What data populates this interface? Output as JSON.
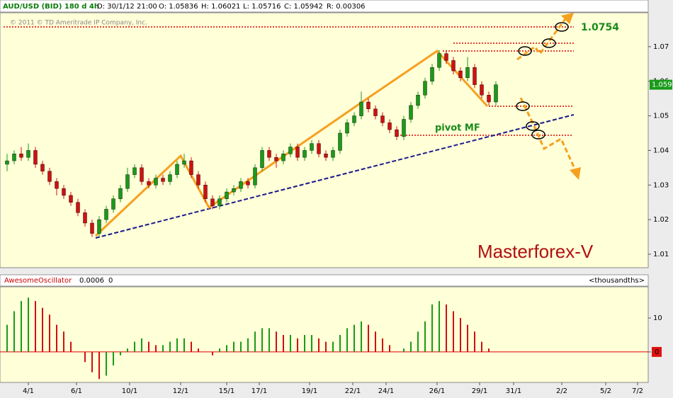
{
  "header": {
    "symbol": "AUD/USD (BID) 180 d 4h",
    "date": "D: 30/1/12 21:00",
    "open": "O: 1.05836",
    "high": "H: 1.06021",
    "low": "L: 1.05716",
    "close": "C: 1.05942",
    "range": "R: 0.00306",
    "copyright": "© 2011 © TD Ameritrade IP Company, Inc."
  },
  "chart_data": [
    {
      "type": "candlestick",
      "annotations": [
        "1.0754",
        "pivot MF",
        "Masterforex-V"
      ],
      "last_price": 1.059,
      "open": [
        1.036,
        1.037,
        1.039,
        1.038,
        1.04,
        1.036,
        1.034,
        1.031,
        1.029,
        1.027,
        1.025,
        1.022,
        1.019,
        1.016,
        1.02,
        1.023,
        1.026,
        1.029,
        1.033,
        1.035,
        1.031,
        1.03,
        1.032,
        1.031,
        1.033,
        1.036,
        1.037,
        1.033,
        1.03,
        1.026,
        1.024,
        1.026,
        1.028,
        1.029,
        1.031,
        1.03,
        1.035,
        1.04,
        1.038,
        1.037,
        1.039,
        1.041,
        1.038,
        1.04,
        1.042,
        1.039,
        1.038,
        1.04,
        1.045,
        1.048,
        1.05,
        1.054,
        1.052,
        1.05,
        1.048,
        1.046,
        1.044,
        1.049,
        1.053,
        1.056,
        1.06,
        1.064,
        1.068,
        1.066,
        1.063,
        1.061,
        1.064,
        1.059,
        1.056,
        1.054
      ],
      "high": [
        1.039,
        1.04,
        1.041,
        1.042,
        1.041,
        1.037,
        1.035,
        1.032,
        1.03,
        1.028,
        1.026,
        1.023,
        1.02,
        1.021,
        1.024,
        1.027,
        1.03,
        1.035,
        1.036,
        1.036,
        1.032,
        1.033,
        1.033,
        1.034,
        1.037,
        1.039,
        1.038,
        1.034,
        1.031,
        1.027,
        1.027,
        1.029,
        1.03,
        1.032,
        1.032,
        1.036,
        1.041,
        1.041,
        1.039,
        1.04,
        1.042,
        1.042,
        1.041,
        1.043,
        1.043,
        1.04,
        1.041,
        1.046,
        1.049,
        1.051,
        1.057,
        1.055,
        1.053,
        1.051,
        1.049,
        1.047,
        1.05,
        1.054,
        1.057,
        1.061,
        1.065,
        1.069,
        1.069,
        1.067,
        1.064,
        1.067,
        1.065,
        1.06,
        1.057,
        1.06
      ],
      "low": [
        1.034,
        1.036,
        1.037,
        1.037,
        1.035,
        1.033,
        1.03,
        1.027,
        1.026,
        1.024,
        1.021,
        1.018,
        1.015,
        1.015,
        1.019,
        1.022,
        1.025,
        1.028,
        1.032,
        1.03,
        1.029,
        1.029,
        1.03,
        1.03,
        1.032,
        1.035,
        1.032,
        1.029,
        1.025,
        1.023,
        1.023,
        1.025,
        1.027,
        1.028,
        1.029,
        1.029,
        1.034,
        1.037,
        1.035,
        1.036,
        1.038,
        1.037,
        1.037,
        1.039,
        1.038,
        1.037,
        1.037,
        1.039,
        1.044,
        1.047,
        1.049,
        1.051,
        1.049,
        1.047,
        1.045,
        1.043,
        1.043,
        1.048,
        1.052,
        1.055,
        1.059,
        1.063,
        1.065,
        1.062,
        1.06,
        1.06,
        1.058,
        1.055,
        1.053,
        1.053
      ],
      "close": [
        1.037,
        1.039,
        1.038,
        1.04,
        1.036,
        1.034,
        1.031,
        1.029,
        1.027,
        1.025,
        1.022,
        1.019,
        1.016,
        1.02,
        1.023,
        1.026,
        1.029,
        1.033,
        1.035,
        1.031,
        1.03,
        1.032,
        1.031,
        1.033,
        1.036,
        1.037,
        1.033,
        1.03,
        1.026,
        1.024,
        1.026,
        1.028,
        1.029,
        1.031,
        1.03,
        1.035,
        1.04,
        1.038,
        1.037,
        1.039,
        1.041,
        1.038,
        1.04,
        1.042,
        1.039,
        1.038,
        1.04,
        1.045,
        1.048,
        1.05,
        1.054,
        1.052,
        1.05,
        1.048,
        1.046,
        1.044,
        1.049,
        1.053,
        1.056,
        1.06,
        1.064,
        1.068,
        1.066,
        1.063,
        1.061,
        1.064,
        1.059,
        1.056,
        1.054,
        1.059
      ],
      "up_color": "#1a9a1a",
      "down_color": "#d01010",
      "ylim": [
        1.0061,
        1.0798
      ],
      "yticks": [
        1.01,
        1.02,
        1.03,
        1.04,
        1.05,
        1.06,
        1.07
      ]
    },
    {
      "type": "bar",
      "title": "AwesomeOscillator",
      "readings": [
        "0.0006",
        "0"
      ],
      "unit_label": "<thousandths>",
      "last_value": 0,
      "values": [
        8,
        12,
        15,
        16,
        15,
        13,
        11,
        8,
        6,
        3,
        0,
        -3,
        -6,
        -8,
        -7,
        -4,
        -1,
        1,
        3,
        4,
        3,
        2,
        2,
        3,
        4,
        4,
        3,
        1,
        0,
        -1,
        1,
        2,
        3,
        3,
        4,
        6,
        7,
        7,
        6,
        5,
        5,
        4,
        5,
        5,
        4,
        3,
        3,
        5,
        7,
        8,
        9,
        8,
        6,
        4,
        2,
        0,
        1,
        3,
        6,
        9,
        14,
        15,
        14,
        12,
        10,
        8,
        6,
        3,
        1,
        0
      ],
      "up_color": "#1a9a1a",
      "down_color": "#d01010",
      "ylim": [
        -9,
        19.2
      ],
      "yticks": [
        0,
        10
      ],
      "x_labels": [
        "4/1",
        "6/1",
        "10/1",
        "12/1",
        "15/1",
        "17/1",
        "19/1",
        "22/1",
        "24/1",
        "26/1",
        "29/1",
        "31/1",
        "2/2",
        "5/2",
        "7/2"
      ]
    }
  ]
}
